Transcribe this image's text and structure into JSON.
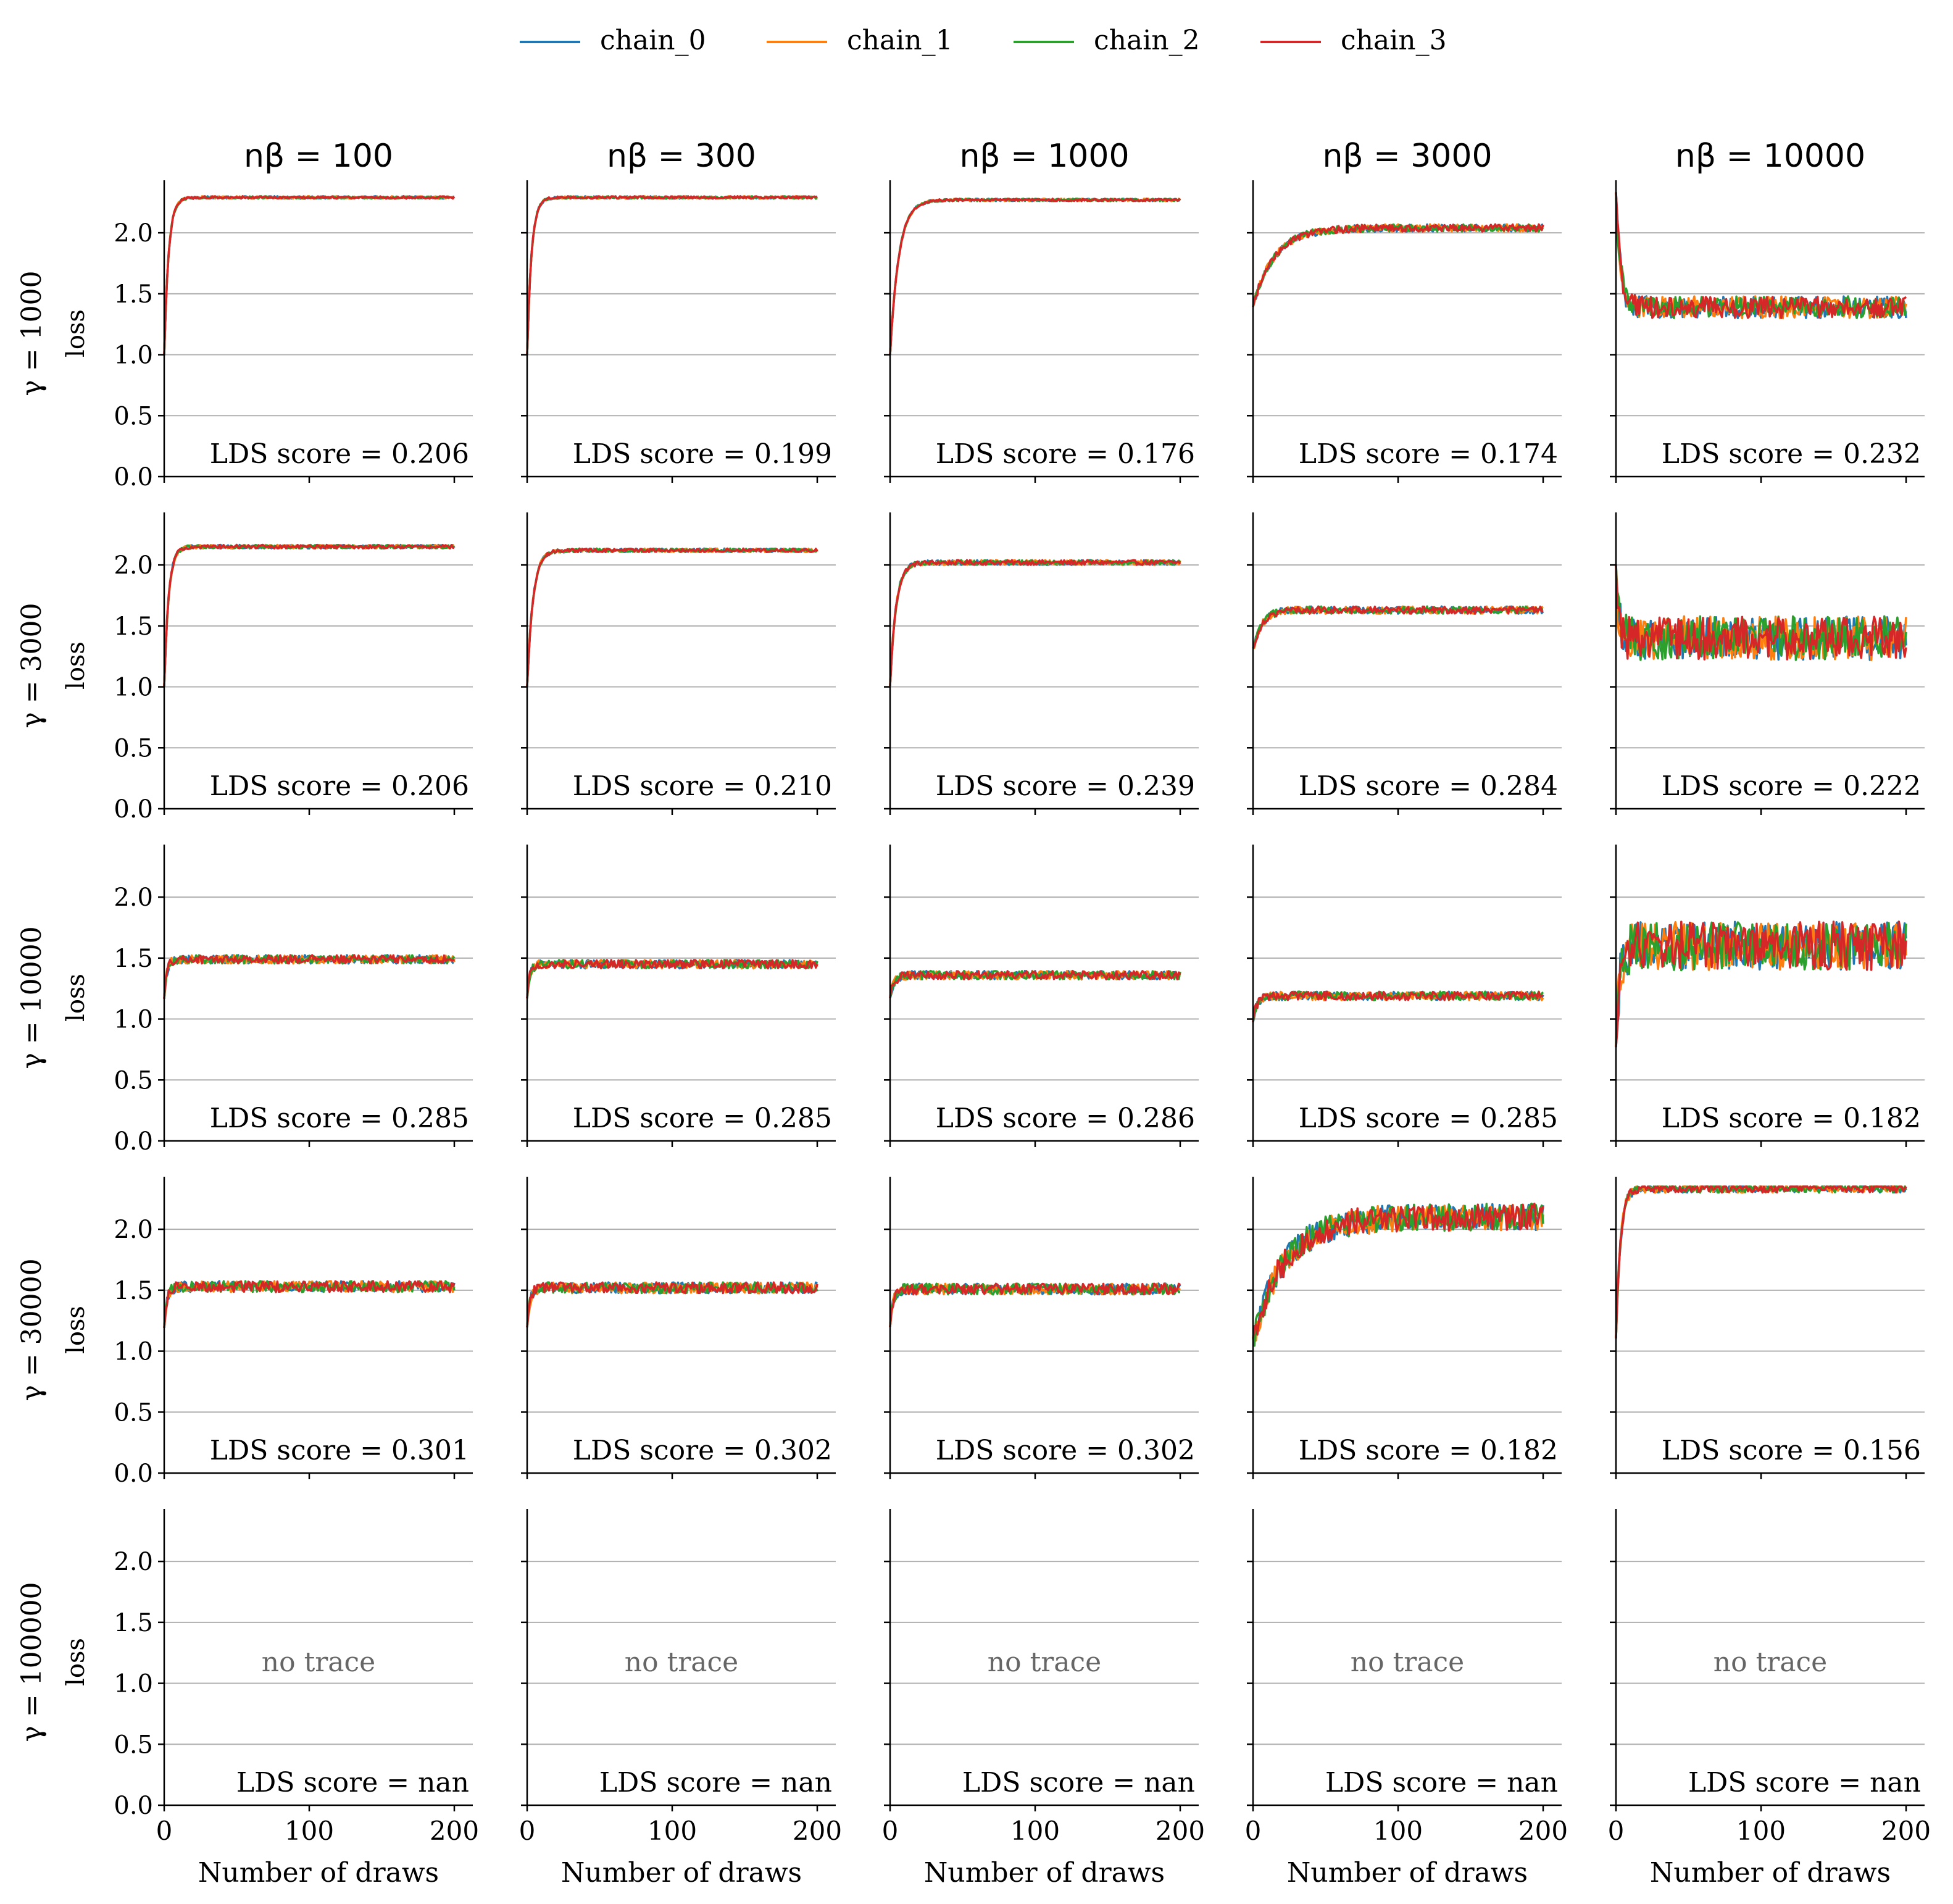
{
  "chart_data": {
    "type": "line",
    "title": "",
    "xlabel": "Number of draws",
    "ylabel": "loss",
    "xlim": [
      0,
      200
    ],
    "ylim": [
      0,
      2.35
    ],
    "x_ticks": [
      0,
      100,
      200
    ],
    "x_tick_labels": [
      "0",
      "100",
      "200"
    ],
    "y_ticks": [
      0.0,
      0.5,
      1.0,
      1.5,
      2.0
    ],
    "y_tick_labels": [
      "0.0",
      "0.5",
      "1.0",
      "1.5",
      "2.0"
    ],
    "grid": "horizontal",
    "legend_position": "top-center",
    "chains": [
      {
        "name": "chain_0",
        "color": "#1f77b4"
      },
      {
        "name": "chain_1",
        "color": "#ff7f0e"
      },
      {
        "name": "chain_2",
        "color": "#2ca02c"
      },
      {
        "name": "chain_3",
        "color": "#d62728"
      }
    ],
    "columns": [
      {
        "label": "nβ = 100"
      },
      {
        "label": "nβ = 300"
      },
      {
        "label": "nβ = 1000"
      },
      {
        "label": "nβ = 3000"
      },
      {
        "label": "nβ = 10000"
      }
    ],
    "rows": [
      {
        "label": "γ = 1000",
        "panels": [
          {
            "lds": "LDS score = 0.206",
            "start": 1.0,
            "plateau": 2.29,
            "rise": 3,
            "noise": 0.01
          },
          {
            "lds": "LDS score = 0.199",
            "start": 1.0,
            "plateau": 2.29,
            "rise": 3,
            "noise": 0.01
          },
          {
            "lds": "LDS score = 0.176",
            "start": 1.0,
            "plateau": 2.27,
            "rise": 6,
            "noise": 0.01
          },
          {
            "lds": "LDS score = 0.174",
            "start": 1.4,
            "plateau": 2.04,
            "rise": 15,
            "noise": 0.03
          },
          {
            "lds": "LDS score = 0.232",
            "start": 2.35,
            "plateau": 1.39,
            "rise": 3,
            "noise": 0.09
          }
        ]
      },
      {
        "label": "γ = 3000",
        "panels": [
          {
            "lds": "LDS score = 0.206",
            "start": 1.0,
            "plateau": 2.15,
            "rise": 3,
            "noise": 0.015
          },
          {
            "lds": "LDS score = 0.210",
            "start": 1.0,
            "plateau": 2.12,
            "rise": 4,
            "noise": 0.015
          },
          {
            "lds": "LDS score = 0.239",
            "start": 1.0,
            "plateau": 2.02,
            "rise": 4,
            "noise": 0.02
          },
          {
            "lds": "LDS score = 0.284",
            "start": 1.3,
            "plateau": 1.63,
            "rise": 6,
            "noise": 0.03
          },
          {
            "lds": "LDS score = 0.222",
            "start": 1.9,
            "plateau": 1.4,
            "rise": 2,
            "noise": 0.18
          }
        ]
      },
      {
        "label": "γ = 10000",
        "panels": [
          {
            "lds": "LDS score = 0.285",
            "start": 1.2,
            "plateau": 1.49,
            "rise": 2,
            "noise": 0.035
          },
          {
            "lds": "LDS score = 0.285",
            "start": 1.2,
            "plateau": 1.45,
            "rise": 2,
            "noise": 0.035
          },
          {
            "lds": "LDS score = 0.286",
            "start": 1.2,
            "plateau": 1.36,
            "rise": 3,
            "noise": 0.035
          },
          {
            "lds": "LDS score = 0.285",
            "start": 1.0,
            "plateau": 1.19,
            "rise": 3,
            "noise": 0.035
          },
          {
            "lds": "LDS score = 0.182",
            "start": 0.9,
            "plateau": 1.6,
            "rise": 3,
            "noise": 0.2
          }
        ]
      },
      {
        "label": "γ = 30000",
        "panels": [
          {
            "lds": "LDS score = 0.301",
            "start": 1.2,
            "plateau": 1.53,
            "rise": 2,
            "noise": 0.045
          },
          {
            "lds": "LDS score = 0.302",
            "start": 1.2,
            "plateau": 1.52,
            "rise": 2,
            "noise": 0.045
          },
          {
            "lds": "LDS score = 0.302",
            "start": 1.2,
            "plateau": 1.51,
            "rise": 2,
            "noise": 0.045
          },
          {
            "lds": "LDS score = 0.182",
            "start": 1.1,
            "plateau": 2.1,
            "rise": 22,
            "noise": 0.11
          },
          {
            "lds": "LDS score = 0.156",
            "start": 1.1,
            "plateau": 2.34,
            "rise": 3,
            "noise": 0.04
          }
        ]
      },
      {
        "label": "γ = 100000",
        "panels": [
          {
            "lds": "LDS score = nan",
            "note": "no trace"
          },
          {
            "lds": "LDS score = nan",
            "note": "no trace"
          },
          {
            "lds": "LDS score = nan",
            "note": "no trace"
          },
          {
            "lds": "LDS score = nan",
            "note": "no trace"
          },
          {
            "lds": "LDS score = nan",
            "note": "no trace"
          }
        ]
      }
    ]
  }
}
